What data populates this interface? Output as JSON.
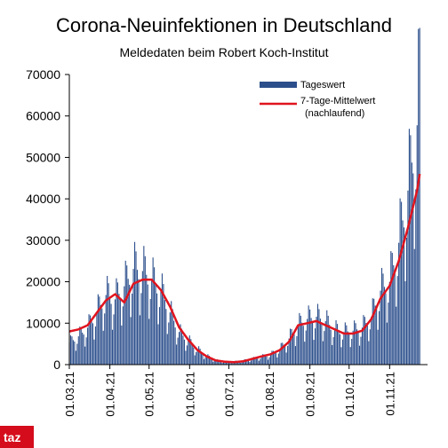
{
  "chart_data": {
    "type": "bar",
    "title": "Corona-Neuinfektionen in Deutschland",
    "subtitle": "Meldedaten beim Robert Koch-Institut",
    "x_range": [
      "01.03.21",
      "24.11.21"
    ],
    "y_ticks": [
      0,
      10000,
      20000,
      30000,
      40000,
      50000,
      60000,
      70000
    ],
    "ylim": [
      0,
      70000
    ],
    "x_ticks": [
      "01.03.21",
      "01.04.21",
      "01.05.21",
      "01.06.21",
      "01.07.21",
      "01.08.21",
      "01.09.21",
      "01.10.21",
      "01.11.21"
    ],
    "grid": false,
    "legend_position": "top-right",
    "series": [
      {
        "name": "Tageswert",
        "kind": "bar",
        "color": "#2c4f8c",
        "points": [
          [
            "01.03.21",
            5000
          ],
          [
            "08.03.21",
            6500
          ],
          [
            "15.03.21",
            8500
          ],
          [
            "22.03.21",
            12000
          ],
          [
            "29.03.21",
            16000
          ],
          [
            "05.04.21",
            15000
          ],
          [
            "12.04.21",
            18000
          ],
          [
            "19.04.21",
            22000
          ],
          [
            "26.04.21",
            21500
          ],
          [
            "03.05.21",
            19500
          ],
          [
            "10.05.21",
            17000
          ],
          [
            "17.05.21",
            12000
          ],
          [
            "24.05.21",
            7500
          ],
          [
            "31.05.21",
            5500
          ],
          [
            "07.06.21",
            3500
          ],
          [
            "14.06.21",
            2000
          ],
          [
            "21.06.21",
            1000
          ],
          [
            "28.06.21",
            700
          ],
          [
            "05.07.21",
            650
          ],
          [
            "12.07.21",
            900
          ],
          [
            "19.07.21",
            1300
          ],
          [
            "26.07.21",
            1800
          ],
          [
            "02.08.21",
            2300
          ],
          [
            "09.08.21",
            3500
          ],
          [
            "16.08.21",
            6000
          ],
          [
            "23.08.21",
            9000
          ],
          [
            "30.08.21",
            10500
          ],
          [
            "06.09.21",
            11000
          ],
          [
            "13.09.21",
            10000
          ],
          [
            "20.09.21",
            8000
          ],
          [
            "27.09.21",
            7500
          ],
          [
            "04.10.21",
            7800
          ],
          [
            "11.10.21",
            8500
          ],
          [
            "18.10.21",
            11000
          ],
          [
            "25.10.21",
            17000
          ],
          [
            "01.11.21",
            19000
          ],
          [
            "08.11.21",
            28000
          ],
          [
            "15.11.21",
            40000
          ],
          [
            "22.11.21",
            55000
          ],
          [
            "24.11.21",
            65000
          ]
        ]
      },
      {
        "name": "7-Tage-Mittelwert (nachlaufend)",
        "kind": "line",
        "color": "#e0141e",
        "points": [
          [
            "01.03.21",
            8000
          ],
          [
            "08.03.21",
            8500
          ],
          [
            "15.03.21",
            9500
          ],
          [
            "22.03.21",
            12500
          ],
          [
            "29.03.21",
            15500
          ],
          [
            "05.04.21",
            17000
          ],
          [
            "12.04.21",
            15000
          ],
          [
            "19.04.21",
            19500
          ],
          [
            "26.04.21",
            20500
          ],
          [
            "03.05.21",
            20500
          ],
          [
            "10.05.21",
            18000
          ],
          [
            "17.05.21",
            14000
          ],
          [
            "24.05.21",
            9000
          ],
          [
            "31.05.21",
            6000
          ],
          [
            "07.06.21",
            3500
          ],
          [
            "14.06.21",
            2000
          ],
          [
            "21.06.21",
            1000
          ],
          [
            "28.06.21",
            700
          ],
          [
            "05.07.21",
            600
          ],
          [
            "12.07.21",
            800
          ],
          [
            "19.07.21",
            1400
          ],
          [
            "26.07.21",
            2000
          ],
          [
            "02.08.21",
            2500
          ],
          [
            "09.08.21",
            3500
          ],
          [
            "16.08.21",
            5500
          ],
          [
            "23.08.21",
            9500
          ],
          [
            "30.08.21",
            10000
          ],
          [
            "06.09.21",
            10500
          ],
          [
            "13.09.21",
            9500
          ],
          [
            "20.09.21",
            8500
          ],
          [
            "27.09.21",
            7500
          ],
          [
            "04.10.21",
            7500
          ],
          [
            "11.10.21",
            8200
          ],
          [
            "18.10.21",
            11000
          ],
          [
            "25.10.21",
            16000
          ],
          [
            "01.11.21",
            19000
          ],
          [
            "08.11.21",
            25000
          ],
          [
            "15.11.21",
            33000
          ],
          [
            "22.11.21",
            42000
          ],
          [
            "24.11.21",
            46000
          ]
        ]
      }
    ]
  },
  "logo": {
    "text": "taz",
    "color": "#d50c1c"
  }
}
